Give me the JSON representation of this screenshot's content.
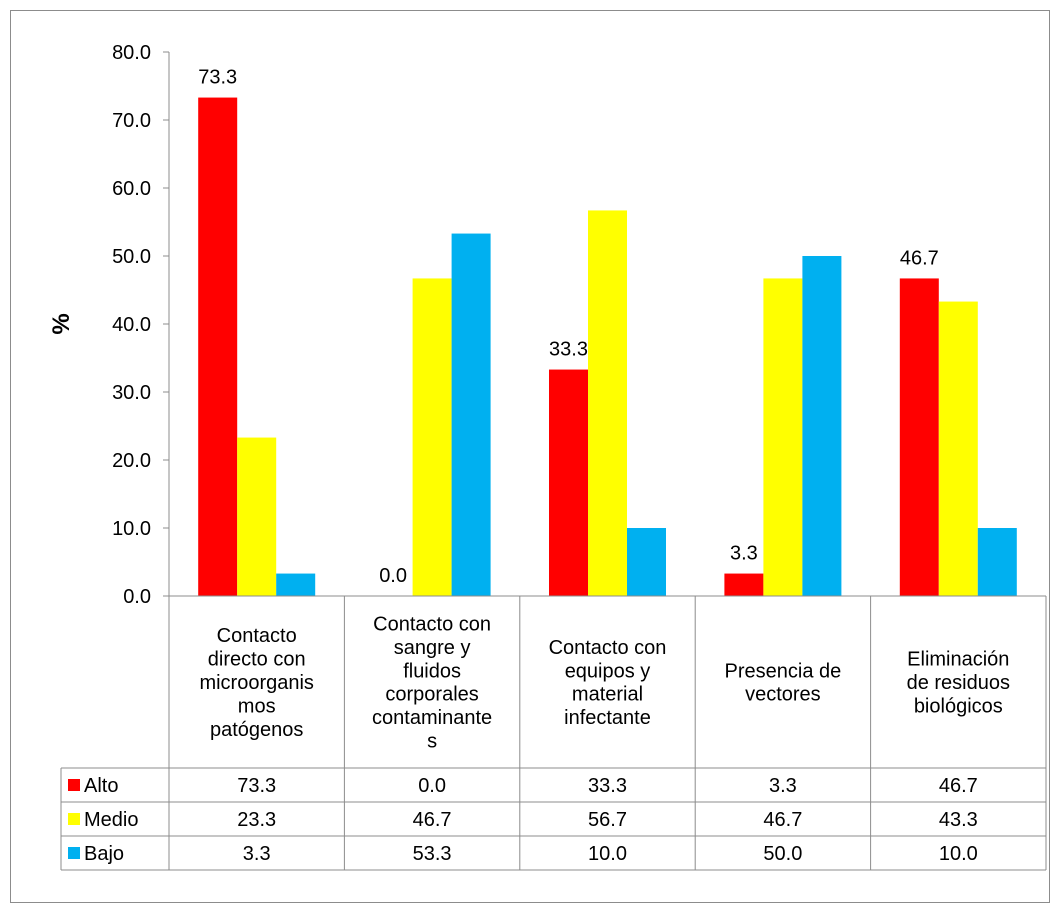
{
  "chart_data": {
    "type": "bar",
    "ylabel": "%",
    "ylim": [
      0,
      80
    ],
    "yticks": [
      "0.0",
      "10.0",
      "20.0",
      "30.0",
      "40.0",
      "50.0",
      "60.0",
      "70.0",
      "80.0"
    ],
    "grid": false,
    "categories": [
      [
        "Contacto",
        "directo con",
        "microorganis",
        "mos",
        "patógenos"
      ],
      [
        "Contacto con",
        "sangre y",
        "fluidos",
        "corporales",
        "contaminante",
        "s"
      ],
      [
        "Contacto con",
        "equipos y",
        "material",
        "infectante"
      ],
      [
        "Presencia de",
        "vectores"
      ],
      [
        "Eliminación",
        "de residuos",
        "biológicos"
      ]
    ],
    "series": [
      {
        "name": "Alto",
        "color": "#ff0000",
        "values": [
          73.3,
          0.0,
          33.3,
          3.3,
          46.7
        ],
        "display": [
          "73.3",
          "0.0",
          "33.3",
          "3.3",
          "46.7"
        ],
        "bar_labels": [
          "73.3",
          "0.0",
          "33.3",
          "3.3",
          "46.7"
        ]
      },
      {
        "name": "Medio",
        "color": "#ffff00",
        "values": [
          23.3,
          46.7,
          56.7,
          46.7,
          43.3
        ],
        "display": [
          "23.3",
          "46.7",
          "56.7",
          "46.7",
          "43.3"
        ],
        "bar_labels": []
      },
      {
        "name": "Bajo",
        "color": "#00b0f0",
        "values": [
          3.3,
          53.3,
          10.0,
          50.0,
          10.0
        ],
        "display": [
          "3.3",
          "53.3",
          "10.0",
          "50.0",
          "10.0"
        ],
        "bar_labels": []
      }
    ],
    "legend": "data-table"
  }
}
